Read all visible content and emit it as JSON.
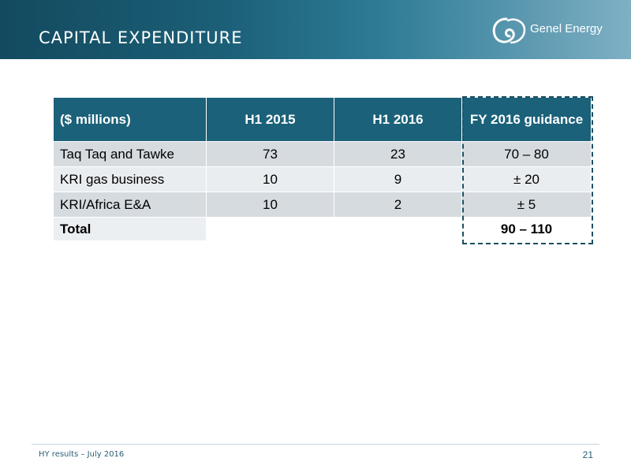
{
  "header": {
    "title": "CAPITAL EXPENDITURE",
    "logo_text": "Genel Energy"
  },
  "table": {
    "columns": [
      "($ millions)",
      "H1 2015",
      "H1 2016",
      "FY 2016 guidance"
    ],
    "rows": [
      [
        "Taq Taq and Tawke",
        "73",
        "23",
        "70 – 80"
      ],
      [
        "KRI gas business",
        "10",
        "9",
        "± 20"
      ],
      [
        "KRI/Africa E&A",
        "10",
        "2",
        "± 5"
      ],
      [
        "Total",
        "",
        "",
        "90 – 110"
      ]
    ]
  },
  "footer": {
    "text": "HY results – July 2016",
    "page_number": "21"
  },
  "colors": {
    "header_dark": "#134a5f",
    "table_header": "#1b6179",
    "row_even": "#d6dbe0",
    "row_odd": "#eaedf0",
    "dash_border": "#1b4f62"
  }
}
